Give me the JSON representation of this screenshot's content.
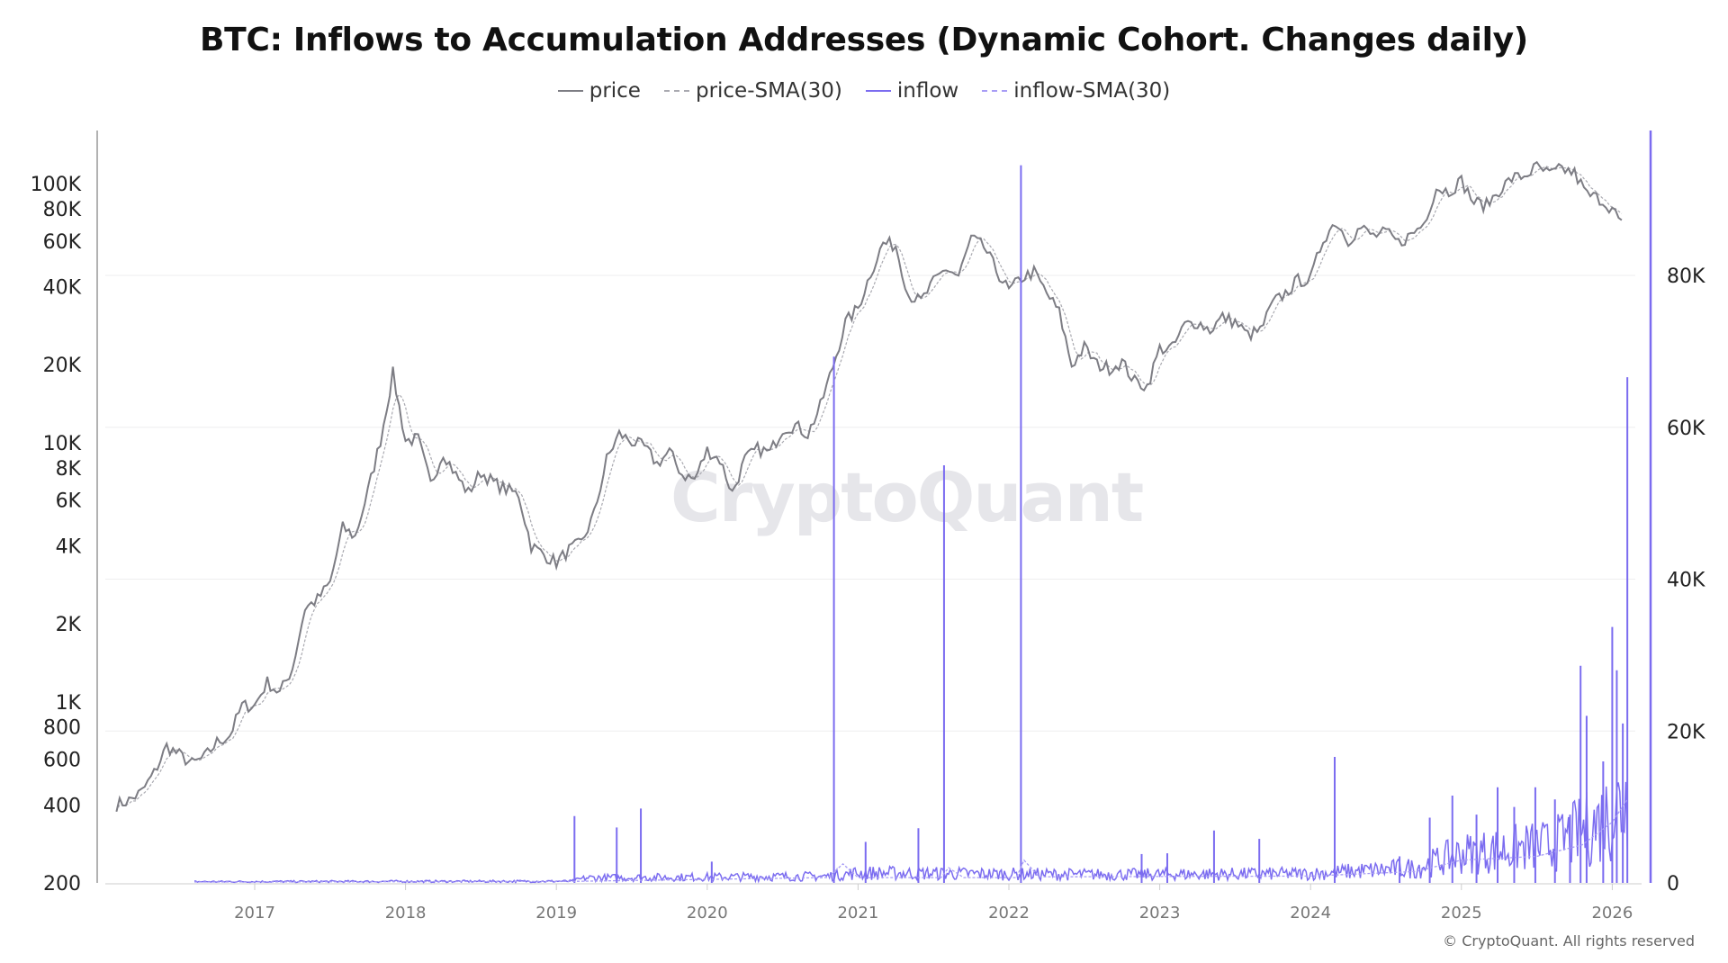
{
  "title": "BTC: Inflows to Accumulation Addresses (Dynamic Cohort. Changes daily)",
  "watermark": "CryptoQuant",
  "copyright": "© CryptoQuant. All rights reserved",
  "colors": {
    "price": "#7d7d84",
    "price_sma": "#a9a9b0",
    "inflow": "#7b6cf0",
    "inflow_sma": "#a79cf5",
    "grid": "#eeeeef"
  },
  "legend": [
    {
      "label": "price",
      "style": "solid",
      "color": "#7d7d84"
    },
    {
      "label": "price-SMA(30)",
      "style": "dashed",
      "color": "#a9a9b0"
    },
    {
      "label": "inflow",
      "style": "solid",
      "color": "#7b6cf0"
    },
    {
      "label": "inflow-SMA(30)",
      "style": "dashed",
      "color": "#a79cf5"
    }
  ],
  "chart_data": {
    "type": "line",
    "title": "BTC: Inflows to Accumulation Addresses (Dynamic Cohort. Changes daily)",
    "x_ticks": [
      "2017",
      "2018",
      "2019",
      "2020",
      "2021",
      "2022",
      "2023",
      "2024",
      "2025",
      "2026"
    ],
    "left_axis": {
      "scale": "log",
      "range": [
        200,
        130000
      ],
      "ticks": [
        "100K",
        "80K",
        "60K",
        "40K",
        "20K",
        "10K",
        "8K",
        "6K",
        "4K",
        "2K",
        "1K",
        "800",
        "600",
        "400",
        "200"
      ],
      "tick_values": [
        100000,
        80000,
        60000,
        40000,
        20000,
        10000,
        8000,
        6000,
        4000,
        2000,
        1000,
        800,
        600,
        400,
        200
      ]
    },
    "right_axis": {
      "scale": "linear",
      "range": [
        0,
        99000
      ],
      "ticks": [
        "80K",
        "60K",
        "40K",
        "20K",
        "0"
      ],
      "tick_values": [
        80000,
        60000,
        40000,
        20000,
        0
      ]
    },
    "grid": "horizontal, right-axis ticks",
    "legend_position": "top-center",
    "series": [
      {
        "name": "price",
        "axis": "left",
        "start": "2016-02",
        "interval": "monthly",
        "values": [
          400,
          416,
          448,
          531,
          673,
          624,
          575,
          609,
          698,
          742,
          963,
          970,
          1190,
          1080,
          1348,
          2300,
          2480,
          2875,
          4700,
          4340,
          6470,
          10200,
          18500,
          10200,
          10300,
          6900,
          9200,
          7500,
          6400,
          7700,
          7000,
          6600,
          6300,
          4000,
          3700,
          3450,
          3850,
          4100,
          5300,
          8600,
          10800,
          10100,
          9600,
          8300,
          9200,
          7550,
          7200,
          9350,
          8600,
          6400,
          8600,
          9450,
          9140,
          11350,
          11650,
          10780,
          13800,
          19700,
          29000,
          33100,
          45200,
          58800,
          57700,
          37300,
          35000,
          41500,
          47100,
          43800,
          61300,
          57000,
          46300,
          38500,
          43200,
          45500,
          37700,
          31800,
          19900,
          23300,
          20000,
          19400,
          20500,
          17200,
          16500,
          23100,
          23100,
          28500,
          29200,
          27200,
          30500,
          29200,
          26000,
          27000,
          34500,
          37700,
          42300,
          42600,
          61200,
          71300,
          60600,
          67500,
          62700,
          64600,
          59000,
          63300,
          70200,
          96400,
          93400,
          102400,
          84400,
          82500,
          94200,
          104600,
          107100,
          115700,
          108200,
          114000,
          109500,
          90400,
          87500,
          80000,
          66000
        ]
      },
      {
        "name": "price-SMA(30)",
        "axis": "left",
        "derived_from": "price"
      },
      {
        "name": "inflow",
        "axis": "right",
        "baseline": [
          [
            "2016.6",
            150
          ],
          [
            "2019.1",
            200
          ],
          [
            "2019.2",
            600
          ],
          [
            "2020.8",
            800
          ],
          [
            "2021.0",
            1200
          ],
          [
            "2022.5",
            1000
          ],
          [
            "2024.0",
            1100
          ],
          [
            "2024.7",
            1800
          ],
          [
            "2025.0",
            3500
          ],
          [
            "2025.6",
            4500
          ],
          [
            "2025.9",
            7000
          ],
          [
            "2026.1",
            10000
          ]
        ],
        "spikes": [
          [
            "2019.12",
            8800
          ],
          [
            "2019.40",
            7300
          ],
          [
            "2019.56",
            9800
          ],
          [
            "2020.03",
            2800
          ],
          [
            "2020.84",
            69300
          ],
          [
            "2021.05",
            5400
          ],
          [
            "2021.40",
            7200
          ],
          [
            "2021.57",
            55000
          ],
          [
            "2022.08",
            94500
          ],
          [
            "2022.88",
            3800
          ],
          [
            "2023.05",
            3900
          ],
          [
            "2023.36",
            6900
          ],
          [
            "2023.66",
            5800
          ],
          [
            "2024.16",
            16600
          ],
          [
            "2024.59",
            3500
          ],
          [
            "2024.79",
            8600
          ],
          [
            "2024.94",
            11500
          ],
          [
            "2025.10",
            9000
          ],
          [
            "2025.24",
            12600
          ],
          [
            "2025.35",
            10000
          ],
          [
            "2025.49",
            12600
          ],
          [
            "2025.62",
            11000
          ],
          [
            "2025.72",
            9000
          ],
          [
            "2025.79",
            28600
          ],
          [
            "2025.83",
            22000
          ],
          [
            "2025.94",
            16000
          ],
          [
            "2026.00",
            33700
          ],
          [
            "2026.03",
            28000
          ],
          [
            "2026.07",
            21000
          ],
          [
            "2026.10",
            66600
          ]
        ]
      },
      {
        "name": "inflow-SMA(30)",
        "axis": "right",
        "values": [
          [
            "2016.6",
            120
          ],
          [
            "2019.1",
            200
          ],
          [
            "2020.8",
            700
          ],
          [
            "2020.9",
            2500
          ],
          [
            "2021.0",
            700
          ],
          [
            "2021.55",
            700
          ],
          [
            "2021.6",
            2000
          ],
          [
            "2021.7",
            700
          ],
          [
            "2022.05",
            700
          ],
          [
            "2022.1",
            3000
          ],
          [
            "2022.2",
            800
          ],
          [
            "2024.0",
            900
          ],
          [
            "2024.7",
            1500
          ],
          [
            "2025.0",
            3000
          ],
          [
            "2025.5",
            3500
          ],
          [
            "2025.8",
            5000
          ],
          [
            "2026.0",
            8000
          ],
          [
            "2026.1",
            11000
          ]
        ]
      }
    ]
  }
}
